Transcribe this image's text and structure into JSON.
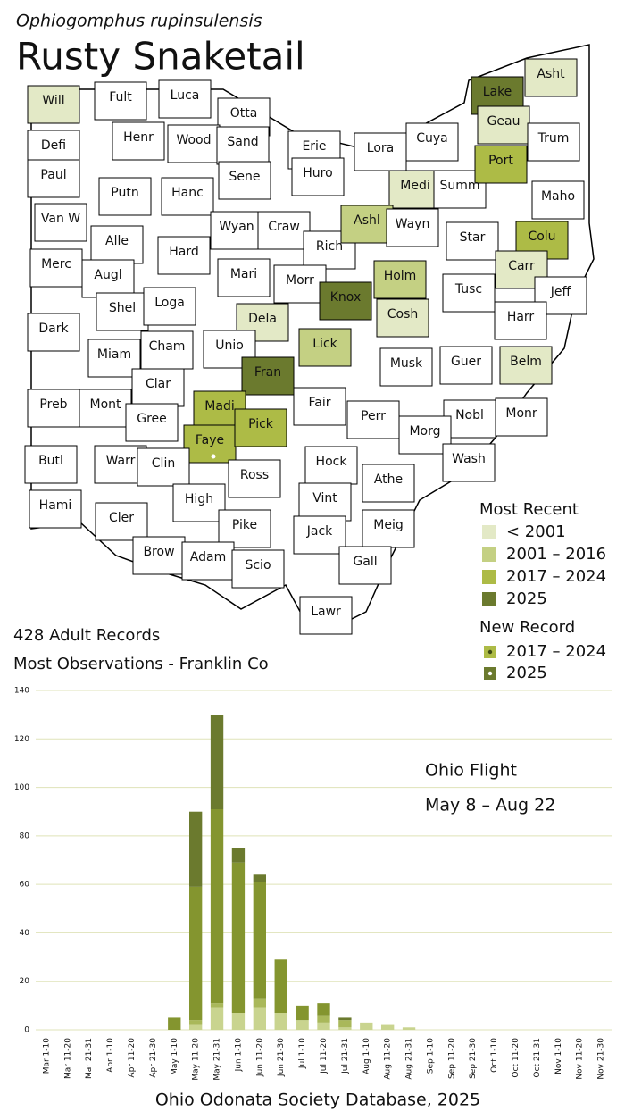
{
  "header": {
    "species": "Ophiogomphus rupinsulensis",
    "title": "Rusty Snaketail"
  },
  "summary": {
    "records": "428 Adult Records",
    "most": "Most Observations - Franklin Co"
  },
  "map": {
    "legend": {
      "title": "Most Recent",
      "items": [
        {
          "label": "< 2001",
          "color": "#e3e9c6"
        },
        {
          "label": "2001 – 2016",
          "color": "#c4d083"
        },
        {
          "label": "2017 – 2024",
          "color": "#adbb46"
        },
        {
          "label": "2025",
          "color": "#6b7a2e"
        }
      ]
    },
    "new_record": {
      "title": "New Record",
      "items": [
        {
          "label": "2017 – 2024",
          "color": "#adbb46",
          "dot": "#3d4a14"
        },
        {
          "label": "2025",
          "color": "#6b7a2e",
          "dot": "#ffffff"
        }
      ]
    },
    "counties": [
      {
        "label": "Will",
        "recent": 0
      },
      {
        "label": "Fult"
      },
      {
        "label": "Luca"
      },
      {
        "label": "Otta"
      },
      {
        "label": "Asht",
        "recent": 0
      },
      {
        "label": "Lake",
        "recent": 3
      },
      {
        "label": "Geau",
        "recent": 0
      },
      {
        "label": "Defi"
      },
      {
        "label": "Henr"
      },
      {
        "label": "Wood"
      },
      {
        "label": "Sand"
      },
      {
        "label": "Erie"
      },
      {
        "label": "Lora"
      },
      {
        "label": "Cuya"
      },
      {
        "label": "Trum"
      },
      {
        "label": "Paul"
      },
      {
        "label": "Putn"
      },
      {
        "label": "Hanc"
      },
      {
        "label": "Sene"
      },
      {
        "label": "Huro"
      },
      {
        "label": "Medi",
        "recent": 0
      },
      {
        "label": "Summ"
      },
      {
        "label": "Port",
        "recent": 2
      },
      {
        "label": "Maho"
      },
      {
        "label": "Van W"
      },
      {
        "label": "Alle"
      },
      {
        "label": "Hard"
      },
      {
        "label": "Wyan"
      },
      {
        "label": "Craw"
      },
      {
        "label": "Rich"
      },
      {
        "label": "Ashl",
        "recent": 1
      },
      {
        "label": "Wayn"
      },
      {
        "label": "Star"
      },
      {
        "label": "Colu",
        "recent": 2
      },
      {
        "label": "Merc"
      },
      {
        "label": "Augl"
      },
      {
        "label": "Mari"
      },
      {
        "label": "Morr"
      },
      {
        "label": "Knox",
        "recent": 3
      },
      {
        "label": "Holm",
        "recent": 1
      },
      {
        "label": "Tusc"
      },
      {
        "label": "Carr",
        "recent": 0
      },
      {
        "label": "Jeff"
      },
      {
        "label": "Shel"
      },
      {
        "label": "Loga"
      },
      {
        "label": "Dela",
        "recent": 0
      },
      {
        "label": "Cosh",
        "recent": 0
      },
      {
        "label": "Harr"
      },
      {
        "label": "Dark"
      },
      {
        "label": "Miam"
      },
      {
        "label": "Cham"
      },
      {
        "label": "Unio"
      },
      {
        "label": "Lick",
        "recent": 1
      },
      {
        "label": "Musk"
      },
      {
        "label": "Guer"
      },
      {
        "label": "Belm",
        "recent": 0
      },
      {
        "label": "Clar"
      },
      {
        "label": "Fran",
        "recent": 3
      },
      {
        "label": "Preb"
      },
      {
        "label": "Mont"
      },
      {
        "label": "Gree"
      },
      {
        "label": "Madi",
        "recent": 2
      },
      {
        "label": "Fair"
      },
      {
        "label": "Perr"
      },
      {
        "label": "Nobl"
      },
      {
        "label": "Monr"
      },
      {
        "label": "Morg"
      },
      {
        "label": "Faye",
        "recent": 2,
        "new": 1
      },
      {
        "label": "Pick",
        "recent": 2
      },
      {
        "label": "Butl"
      },
      {
        "label": "Warr"
      },
      {
        "label": "Clin"
      },
      {
        "label": "Hock"
      },
      {
        "label": "Wash"
      },
      {
        "label": "Athe"
      },
      {
        "label": "Ross"
      },
      {
        "label": "High"
      },
      {
        "label": "Vint"
      },
      {
        "label": "Hami"
      },
      {
        "label": "Cler"
      },
      {
        "label": "Pike"
      },
      {
        "label": "Jack"
      },
      {
        "label": "Meig"
      },
      {
        "label": "Brow"
      },
      {
        "label": "Adam"
      },
      {
        "label": "Scio"
      },
      {
        "label": "Gall"
      },
      {
        "label": "Lawr"
      }
    ]
  },
  "chart_data": {
    "type": "bar",
    "stacked": true,
    "categories": [
      "Mar 1-10",
      "Mar 11-20",
      "Mar 21-31",
      "Apr 1-10",
      "Apr 11-20",
      "Apr 21-30",
      "May 1-10",
      "May 11-20",
      "May 21-31",
      "Jun 1-10",
      "Jun 11-20",
      "Jun 21-30",
      "Jul 1-10",
      "Jul 11-20",
      "Jul 21-31",
      "Aug 1-10",
      "Aug 11-20",
      "Aug 21-31",
      "Sep 1-10",
      "Sep 11-20",
      "Sep 21-30",
      "Oct 1-10",
      "Oct 11-20",
      "Oct 21-31",
      "Nov 1-10",
      "Nov 11-20",
      "Nov 21-30"
    ],
    "series": [
      {
        "color": "#c9d48f",
        "values": [
          0,
          0,
          0,
          0,
          0,
          0,
          0,
          2,
          9,
          7,
          9,
          7,
          4,
          3,
          1,
          3,
          2,
          1,
          0,
          0,
          0,
          0,
          0,
          0,
          0,
          0,
          0
        ]
      },
      {
        "color": "#a9b85a",
        "values": [
          0,
          0,
          0,
          0,
          0,
          0,
          0,
          2,
          2,
          0,
          4,
          0,
          0,
          3,
          3,
          0,
          0,
          0,
          0,
          0,
          0,
          0,
          0,
          0,
          0,
          0,
          0
        ]
      },
      {
        "color": "#84952f",
        "values": [
          0,
          0,
          0,
          0,
          0,
          0,
          5,
          55,
          80,
          62,
          48,
          22,
          6,
          5,
          0,
          0,
          0,
          0,
          0,
          0,
          0,
          0,
          0,
          0,
          0,
          0,
          0
        ]
      },
      {
        "color": "#6b7a2e",
        "values": [
          0,
          0,
          0,
          0,
          0,
          0,
          0,
          31,
          39,
          6,
          3,
          0,
          0,
          0,
          1,
          0,
          0,
          0,
          0,
          0,
          0,
          0,
          0,
          0,
          0,
          0,
          0
        ]
      }
    ],
    "ylim": [
      0,
      140
    ],
    "yticks": [
      0,
      20,
      40,
      60,
      80,
      100,
      120,
      140
    ],
    "grid": true,
    "annotations": [
      "Ohio Flight",
      "May 8 – Aug 22"
    ],
    "source": "Ohio Odonata Society Database, 2025"
  }
}
